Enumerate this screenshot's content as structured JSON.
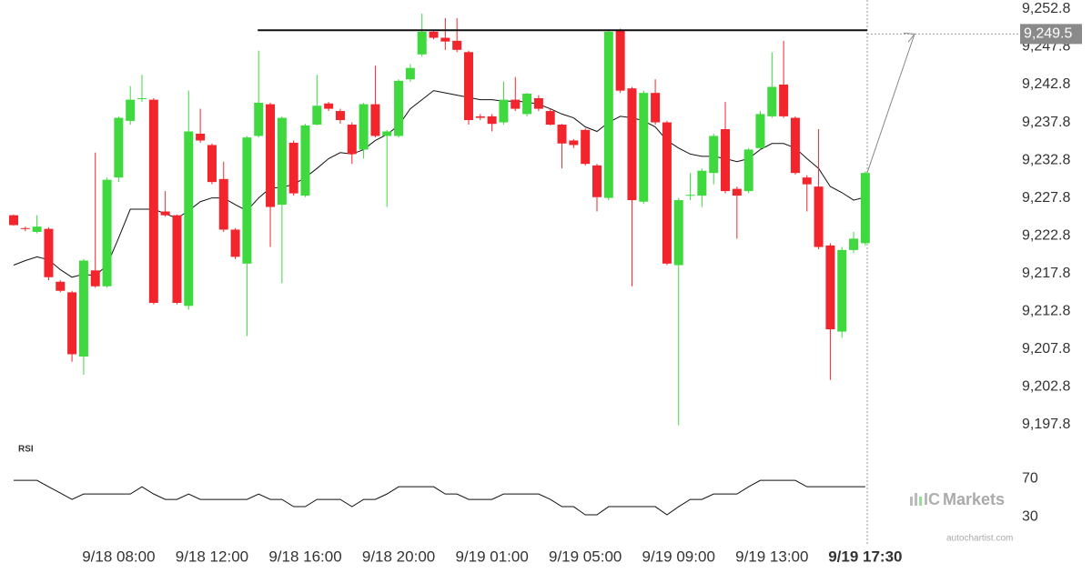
{
  "chart_data": [
    {
      "type": "candlestick",
      "categories": [
        null,
        null,
        null,
        null,
        null,
        null,
        null,
        null,
        null,
        "9/18 08:00",
        null,
        null,
        null,
        null,
        null,
        null,
        null,
        "9/18 12:00",
        null,
        null,
        null,
        null,
        null,
        null,
        null,
        "9/18 16:00",
        null,
        null,
        null,
        null,
        null,
        null,
        null,
        "9/18 20:00",
        null,
        null,
        null,
        null,
        null,
        null,
        null,
        "9/19 01:00",
        null,
        null,
        null,
        null,
        null,
        null,
        null,
        "9/19 05:00",
        null,
        null,
        null,
        null,
        null,
        null,
        null,
        "9/19 09:00",
        null,
        null,
        null,
        null,
        null,
        null,
        null,
        "9/19 13:00",
        null,
        null,
        null,
        null,
        null,
        null,
        null,
        "9/19 17:30"
      ],
      "open": [
        9225.5,
        9223.8,
        9223.3,
        9223.7,
        9216.7,
        9215.3,
        9206.8,
        9218.2,
        9216.1,
        9230.5,
        9238.0,
        9240.9,
        9240.8,
        9226.0,
        9225.5,
        9213.5,
        9236.3,
        9234.8,
        9230.3,
        9223.6,
        9219.1,
        9236.0,
        9240.2,
        9226.9,
        9235.1,
        9228.1,
        9237.5,
        9240.3,
        9239.3,
        9237.5,
        9234.2,
        9240.2,
        9236.0,
        9236.0,
        9243.5,
        9246.8,
        9249.8,
        9249.0,
        9248.6,
        9247.1,
        9238.6,
        9238.6,
        9237.8,
        9240.8,
        9238.9,
        9241.0,
        9239.3,
        9237.5,
        9235.4,
        9236.8,
        9232.1,
        9227.8,
        9250.0,
        9242.3,
        9227.3,
        9241.7,
        9237.8,
        9218.9,
        9228.1,
        9228.1,
        9231.1,
        9236.9,
        9229.0,
        9228.7,
        9234.4,
        9238.6,
        9242.8,
        9238.4,
        9230.5,
        9229.3,
        9221.5,
        9210.1,
        9220.9,
        9221.8
      ],
      "high": [
        9225.6,
        9224.0,
        9225.5,
        9223.9,
        9216.9,
        9215.5,
        9219.7,
        9233.8,
        9230.5,
        9238.6,
        9242.6,
        9244.1,
        9241.0,
        9228.7,
        9225.6,
        9242.0,
        9239.6,
        9235.0,
        9232.6,
        9223.8,
        9236.0,
        9247.3,
        9240.4,
        9238.6,
        9235.4,
        9237.6,
        9244.1,
        9240.5,
        9239.6,
        9237.8,
        9240.4,
        9245.3,
        9236.8,
        9243.5,
        9245.5,
        9252.2,
        9250.0,
        9251.6,
        9251.6,
        9247.3,
        9238.9,
        9238.9,
        9243.2,
        9243.8,
        9241.7,
        9241.4,
        9239.6,
        9237.6,
        9235.6,
        9237.0,
        9232.3,
        9250.0,
        9250.2,
        9242.5,
        9242.0,
        9243.5,
        9238.0,
        9227.8,
        9231.1,
        9231.7,
        9236.3,
        9240.5,
        9229.3,
        9234.4,
        9239.3,
        9247.1,
        9248.6,
        9238.6,
        9230.8,
        9236.9,
        9221.8,
        9221.3,
        9223.3,
        9231.3
      ],
      "low": [
        9224.1,
        9223.4,
        9223.1,
        9216.9,
        9215.3,
        9206.1,
        9204.4,
        9215.9,
        9215.9,
        9229.9,
        9237.5,
        9240.5,
        9213.7,
        9225.3,
        9213.7,
        9213.0,
        9235.1,
        9229.6,
        9223.3,
        9219.7,
        9209.5,
        9235.8,
        9221.3,
        9216.5,
        9228.1,
        9227.9,
        9237.4,
        9239.3,
        9237.6,
        9232.3,
        9233.0,
        9235.8,
        9226.6,
        9235.8,
        9243.2,
        9246.5,
        9248.8,
        9247.4,
        9247.1,
        9237.5,
        9238.1,
        9236.6,
        9237.5,
        9239.3,
        9238.6,
        9239.3,
        9237.4,
        9231.7,
        9234.4,
        9232.1,
        9226.0,
        9227.5,
        9241.7,
        9216.1,
        9227.0,
        9237.5,
        9218.9,
        9197.7,
        9227.5,
        9226.6,
        9229.6,
        9228.4,
        9222.4,
        9228.4,
        9234.2,
        9238.4,
        9238.4,
        9230.9,
        9226.0,
        9221.0,
        9203.7,
        9209.3,
        9220.5,
        9221.5
      ],
      "close": [
        9224.2,
        9223.7,
        9224.0,
        9217.3,
        9215.5,
        9207.1,
        9219.5,
        9216.1,
        9230.2,
        9238.4,
        9240.8,
        9241.0,
        9213.9,
        9225.5,
        9213.9,
        9236.6,
        9235.4,
        9229.9,
        9223.6,
        9220.0,
        9235.8,
        9240.4,
        9226.6,
        9238.4,
        9228.4,
        9237.4,
        9240.0,
        9239.6,
        9238.1,
        9233.6,
        9240.2,
        9236.0,
        9236.6,
        9243.3,
        9245.0,
        9249.8,
        9249.0,
        9248.5,
        9247.4,
        9238.1,
        9238.4,
        9237.6,
        9240.8,
        9239.6,
        9241.6,
        9239.6,
        9237.5,
        9235.0,
        9234.8,
        9232.3,
        9227.9,
        9249.8,
        9242.0,
        9227.5,
        9241.7,
        9237.8,
        9219.1,
        9227.5,
        9228.2,
        9231.4,
        9236.0,
        9228.7,
        9228.1,
        9234.2,
        9238.9,
        9242.5,
        9238.6,
        9231.1,
        9229.6,
        9221.3,
        9210.4,
        9220.9,
        9222.4,
        9231.1
      ],
      "up_color": "#3fd83f",
      "down_color": "#f2252c",
      "moving_average": {
        "color": "#111111",
        "values": [
          9218.9,
          9219.5,
          9220.0,
          9219.6,
          9218.3,
          9217.3,
          9217.7,
          9217.5,
          9218.9,
          9222.5,
          9226.3,
          9226.3,
          9226.3,
          9225.7,
          9225.1,
          9226.1,
          9227.3,
          9227.8,
          9227.8,
          9226.9,
          9226.1,
          9227.8,
          9229.1,
          9229.2,
          9229.6,
          9230.5,
          9231.7,
          9233.0,
          9233.8,
          9233.6,
          9234.2,
          9235.4,
          9236.2,
          9237.4,
          9239.6,
          9240.8,
          9242.0,
          9241.7,
          9241.4,
          9241.1,
          9240.8,
          9240.8,
          9240.6,
          9240.6,
          9240.5,
          9240.2,
          9239.6,
          9238.9,
          9238.4,
          9237.2,
          9236.6,
          9237.8,
          9238.6,
          9238.4,
          9238.0,
          9237.2,
          9235.4,
          9234.4,
          9233.6,
          9233.3,
          9233.3,
          9233.0,
          9232.6,
          9233.0,
          9234.2,
          9235.0,
          9235.0,
          9234.4,
          9233.0,
          9231.7,
          9229.3,
          9228.5,
          9227.5,
          9227.9
        ]
      },
      "resistance": {
        "value": 9250.0,
        "from": 21
      },
      "target": {
        "value": 9249.5,
        "label": "9,249.5"
      },
      "ylim": [
        9196.2,
        9254.0
      ],
      "yticks": [
        {
          "value": 9252.8,
          "label": "9,252.8"
        },
        {
          "value": 9247.8,
          "label": "9,247.8"
        },
        {
          "value": 9242.8,
          "label": "9,242.8"
        },
        {
          "value": 9237.8,
          "label": "9,237.8"
        },
        {
          "value": 9232.8,
          "label": "9,232.8"
        },
        {
          "value": 9227.8,
          "label": "9,227.8"
        },
        {
          "value": 9222.8,
          "label": "9,222.8"
        },
        {
          "value": 9217.8,
          "label": "9,217.8"
        },
        {
          "value": 9212.8,
          "label": "9,212.8"
        },
        {
          "value": 9207.8,
          "label": "9,207.8"
        },
        {
          "value": 9202.8,
          "label": "9,202.8"
        },
        {
          "value": 9197.8,
          "label": "9,197.8"
        }
      ]
    },
    {
      "type": "line",
      "title": "RSI",
      "color": "#111111",
      "values": [
        68.1,
        68.1,
        68.1,
        61.4,
        54.8,
        48.1,
        53.8,
        53.8,
        53.8,
        53.8,
        53.8,
        61.4,
        53.8,
        48.1,
        48.1,
        53.8,
        48.1,
        48.1,
        48.1,
        48.1,
        48.1,
        53.8,
        48.1,
        48.1,
        40.5,
        40.5,
        48.1,
        48.1,
        48.1,
        40.5,
        48.1,
        48.1,
        53.8,
        61.4,
        61.4,
        61.4,
        61.4,
        53.8,
        53.8,
        48.1,
        48.1,
        48.1,
        53.8,
        53.8,
        53.8,
        53.8,
        48.1,
        40.5,
        40.5,
        31.9,
        31.9,
        40.5,
        40.5,
        40.5,
        40.5,
        40.5,
        31.9,
        40.5,
        48.1,
        48.1,
        53.8,
        53.8,
        53.8,
        61.4,
        68.1,
        68.1,
        68.1,
        68.1,
        61.4,
        61.4,
        61.4,
        61.4,
        61.4,
        61.4
      ],
      "ylim": [
        20,
        95
      ],
      "yticks": [
        70,
        30
      ]
    }
  ],
  "logo": {
    "prefix": "IC",
    "name": "Markets"
  },
  "source": "autochartist.com"
}
